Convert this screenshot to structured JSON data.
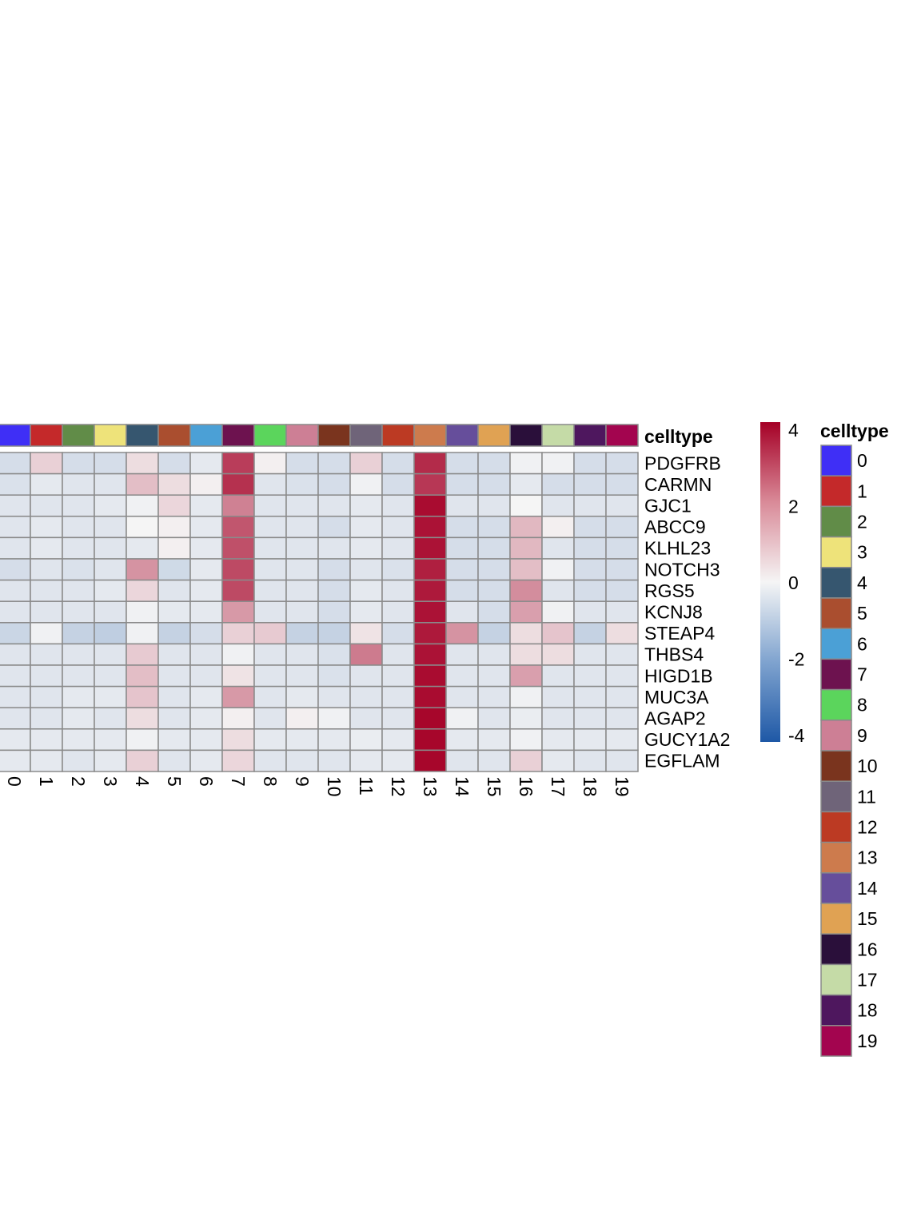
{
  "chart_data": {
    "type": "heatmap",
    "annotation_label": "celltype",
    "legend_title": "celltype",
    "scale": {
      "min": -4,
      "max": 4,
      "ticks": [
        4,
        2,
        0,
        -2,
        -4
      ],
      "low_color": "#1E58A6",
      "mid_color": "#F5F5F5",
      "high_color": "#A50026"
    },
    "columns": [
      "0",
      "1",
      "2",
      "3",
      "4",
      "5",
      "6",
      "7",
      "8",
      "9",
      "10",
      "11",
      "12",
      "13",
      "14",
      "15",
      "16",
      "17",
      "18",
      "19"
    ],
    "celltype_colors": [
      "#3F2FF6",
      "#C4292A",
      "#618C48",
      "#EEE37A",
      "#36566F",
      "#AA4E2F",
      "#4BA0D6",
      "#6D124F",
      "#5BD55C",
      "#CD7F95",
      "#7A341E",
      "#6F6479",
      "#BC3A23",
      "#CD7B4D",
      "#664E9B",
      "#E0A253",
      "#2A0F3A",
      "#C5DBA7",
      "#4E175E",
      "#A3054F"
    ],
    "genes": [
      "PDGFRB",
      "CARMN",
      "GJC1",
      "ABCC9",
      "KLHL23",
      "NOTCH3",
      "RGS5",
      "KCNJ8",
      "STEAP4",
      "THBS4",
      "HIGD1B",
      "MUC3A",
      "AGAP2",
      "GUCY1A2",
      "EGFLAM"
    ],
    "values": [
      [
        -0.6,
        0.6,
        -0.6,
        -0.6,
        0.4,
        -0.6,
        -0.3,
        3.0,
        0.1,
        -0.6,
        -0.6,
        0.6,
        -0.6,
        3.3,
        -0.6,
        -0.6,
        -0.1,
        -0.1,
        -0.6,
        -0.6
      ],
      [
        -0.5,
        -0.3,
        -0.4,
        -0.4,
        0.9,
        0.4,
        0.1,
        3.2,
        -0.4,
        -0.5,
        -0.6,
        -0.1,
        -0.6,
        3.1,
        -0.6,
        -0.6,
        -0.3,
        -0.6,
        -0.6,
        -0.6
      ],
      [
        -0.4,
        -0.4,
        -0.4,
        -0.3,
        -0.1,
        0.5,
        -0.3,
        1.9,
        -0.4,
        -0.4,
        -0.4,
        -0.3,
        -0.4,
        3.8,
        -0.4,
        -0.4,
        0.0,
        -0.4,
        -0.4,
        -0.4
      ],
      [
        -0.4,
        -0.3,
        -0.4,
        -0.4,
        0.0,
        0.1,
        -0.3,
        2.6,
        -0.4,
        -0.4,
        -0.6,
        -0.3,
        -0.4,
        3.7,
        -0.6,
        -0.6,
        1.0,
        0.1,
        -0.6,
        -0.6
      ],
      [
        -0.4,
        -0.3,
        -0.4,
        -0.4,
        -0.3,
        0.1,
        -0.3,
        2.7,
        -0.4,
        -0.4,
        -0.4,
        -0.3,
        -0.4,
        3.7,
        -0.6,
        -0.6,
        1.0,
        -0.4,
        -0.6,
        -0.6
      ],
      [
        -0.6,
        -0.4,
        -0.5,
        -0.4,
        1.6,
        -0.7,
        -0.3,
        2.8,
        -0.4,
        -0.4,
        -0.6,
        -0.4,
        -0.5,
        3.5,
        -0.6,
        -0.6,
        0.9,
        -0.1,
        -0.6,
        -0.6
      ],
      [
        -0.4,
        -0.4,
        -0.4,
        -0.3,
        0.5,
        -0.4,
        -0.3,
        2.8,
        -0.4,
        -0.4,
        -0.6,
        -0.3,
        -0.4,
        3.6,
        -0.6,
        -0.6,
        1.7,
        -0.4,
        -0.6,
        -0.6
      ],
      [
        -0.4,
        -0.4,
        -0.4,
        -0.4,
        -0.1,
        -0.3,
        -0.3,
        1.5,
        -0.4,
        -0.4,
        -0.6,
        -0.3,
        -0.4,
        3.7,
        -0.4,
        -0.6,
        1.4,
        -0.1,
        -0.4,
        -0.4
      ],
      [
        -0.8,
        -0.1,
        -0.9,
        -1.0,
        -0.1,
        -0.9,
        -0.6,
        0.6,
        0.7,
        -0.9,
        -0.9,
        0.3,
        -0.6,
        3.6,
        1.6,
        -0.9,
        0.4,
        0.8,
        -0.9,
        0.4
      ],
      [
        -0.4,
        -0.4,
        -0.4,
        -0.4,
        0.7,
        -0.4,
        -0.4,
        -0.1,
        -0.4,
        -0.4,
        -0.5,
        2.0,
        -0.4,
        3.7,
        -0.4,
        -0.4,
        0.4,
        0.4,
        -0.4,
        -0.4
      ],
      [
        -0.4,
        -0.4,
        -0.4,
        -0.4,
        0.9,
        -0.4,
        -0.4,
        0.3,
        -0.4,
        -0.4,
        -0.5,
        -0.4,
        -0.4,
        3.8,
        -0.4,
        -0.4,
        1.4,
        -0.4,
        -0.4,
        -0.4
      ],
      [
        -0.4,
        -0.4,
        -0.3,
        -0.3,
        0.8,
        -0.4,
        -0.3,
        1.5,
        -0.4,
        -0.3,
        -0.4,
        -0.4,
        -0.4,
        3.8,
        -0.4,
        -0.4,
        -0.1,
        -0.4,
        -0.4,
        -0.4
      ],
      [
        -0.4,
        -0.4,
        -0.3,
        -0.4,
        0.4,
        -0.4,
        -0.3,
        0.1,
        -0.4,
        0.1,
        -0.1,
        -0.4,
        -0.4,
        3.9,
        -0.1,
        -0.4,
        -0.2,
        -0.4,
        -0.4,
        -0.4
      ],
      [
        -0.3,
        -0.3,
        -0.3,
        -0.3,
        -0.1,
        -0.3,
        -0.3,
        0.4,
        -0.3,
        -0.3,
        -0.3,
        -0.2,
        -0.3,
        3.9,
        -0.3,
        -0.3,
        -0.1,
        -0.3,
        -0.3,
        -0.3
      ],
      [
        -0.3,
        -0.3,
        -0.4,
        -0.3,
        0.6,
        -0.4,
        -0.3,
        0.5,
        -0.4,
        -0.4,
        -0.4,
        -0.3,
        -0.3,
        3.9,
        -0.4,
        -0.4,
        0.6,
        -0.3,
        -0.4,
        -0.4
      ]
    ]
  }
}
